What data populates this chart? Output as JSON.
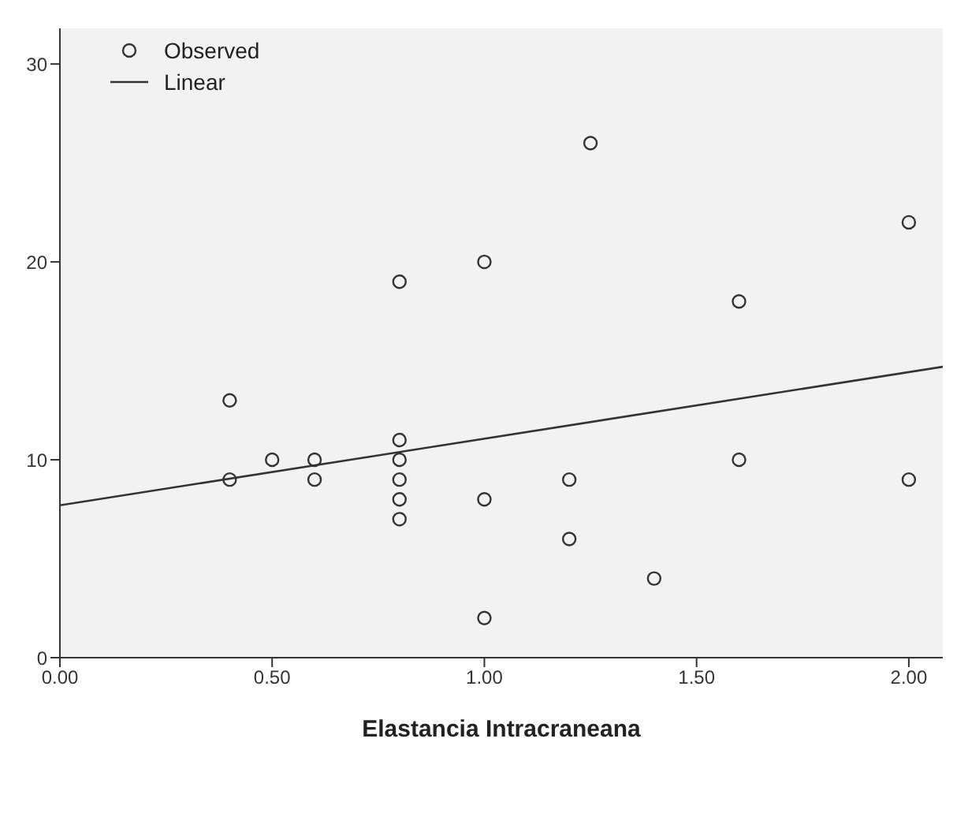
{
  "chart_data": {
    "type": "scatter",
    "xlabel": "Elastancia Intracraneana",
    "xlim": [
      0,
      2.08
    ],
    "xticks": [
      {
        "value": 0,
        "label": "0.00"
      },
      {
        "value": 0.5,
        "label": "0.50"
      },
      {
        "value": 1,
        "label": "1.00"
      },
      {
        "value": 1.5,
        "label": "1.50"
      },
      {
        "value": 2,
        "label": "2.00"
      }
    ],
    "ylim": [
      0,
      31.8
    ],
    "yticks": [
      0,
      10,
      20,
      30
    ],
    "grid": false,
    "legend": "top left",
    "series": [
      {
        "name": "Observed",
        "type": "scatter",
        "marker": "circle",
        "color": "#333333",
        "x": [
          0.4,
          0.4,
          0.5,
          0.6,
          0.6,
          0.8,
          0.8,
          0.8,
          0.8,
          0.8,
          0.8,
          1.0,
          1.0,
          1.0,
          1.2,
          1.2,
          1.25,
          1.4,
          1.6,
          1.6,
          2.0,
          2.0
        ],
        "values": [
          13,
          9,
          10,
          10,
          9,
          19,
          11,
          10,
          9,
          8,
          7,
          20,
          8,
          2,
          9,
          6,
          26,
          4,
          18,
          10,
          22,
          9
        ]
      },
      {
        "name": "Linear",
        "type": "line",
        "marker": "none",
        "color": "#333333",
        "x": [
          0,
          2.08
        ],
        "values": [
          7.7,
          14.7
        ]
      }
    ]
  }
}
